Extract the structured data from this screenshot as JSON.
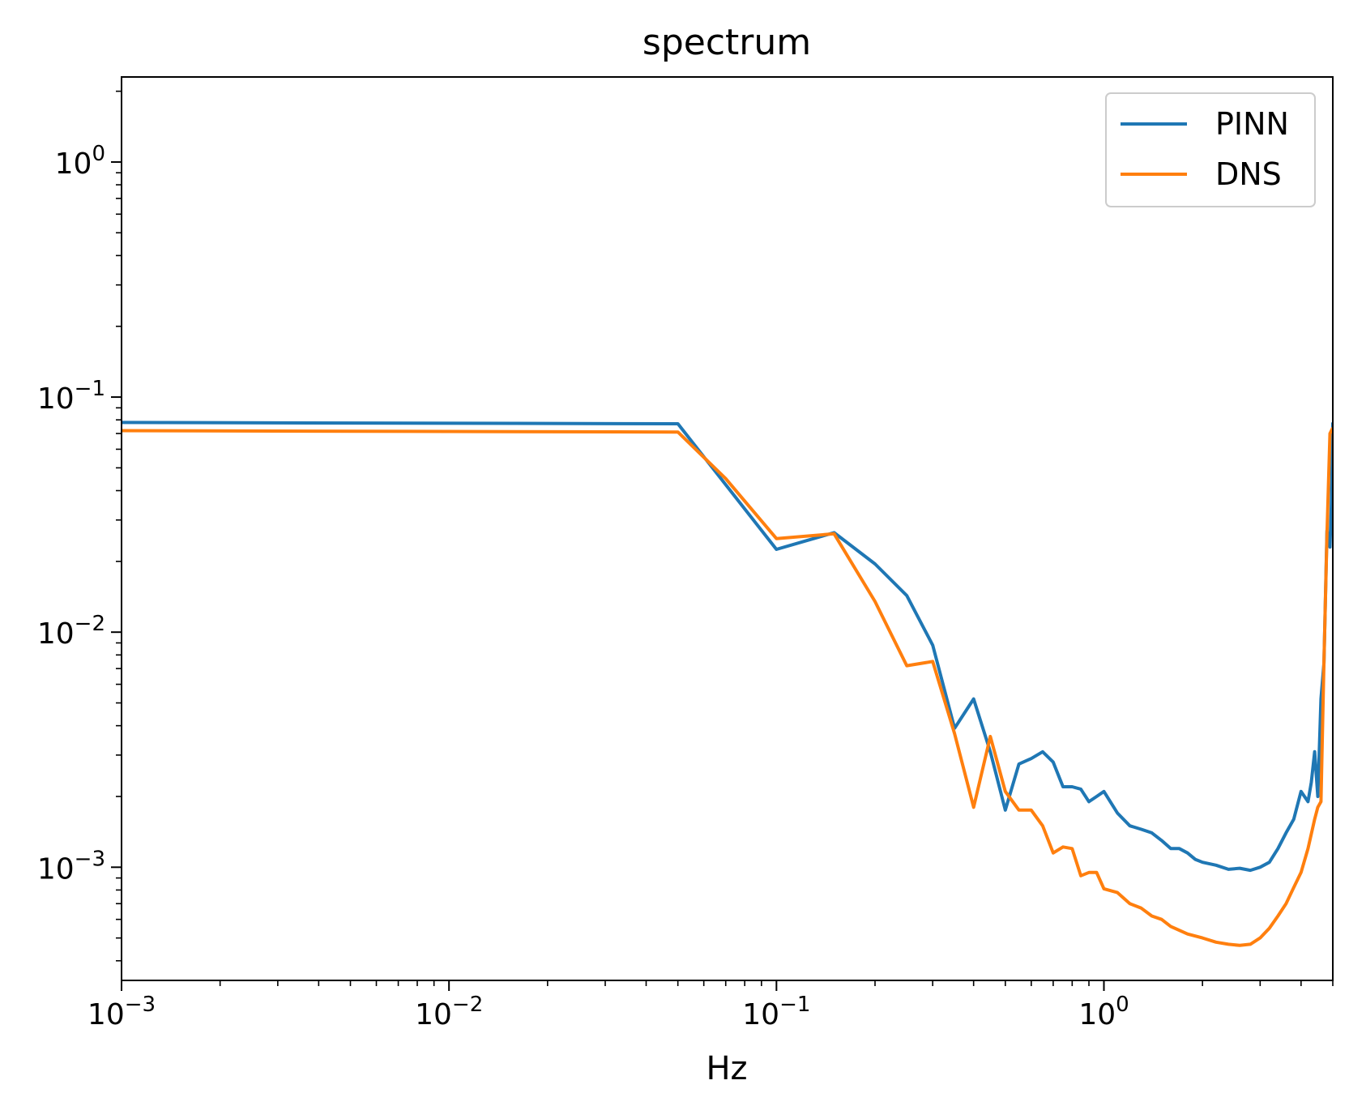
{
  "chart_data": {
    "type": "line",
    "title": "spectrum",
    "xlabel": "Hz",
    "ylabel": "",
    "x_scale": "log",
    "y_scale": "log",
    "xlim": [
      0.001,
      5.0
    ],
    "ylim": [
      0.00033,
      2.3
    ],
    "x_ticks": [
      {
        "value": 0.001,
        "base": "10",
        "exp": "−3"
      },
      {
        "value": 0.01,
        "base": "10",
        "exp": "−2"
      },
      {
        "value": 0.1,
        "base": "10",
        "exp": "−1"
      },
      {
        "value": 1,
        "base": "10",
        "exp": "0"
      }
    ],
    "y_ticks": [
      {
        "value": 0.001,
        "base": "10",
        "exp": "−3"
      },
      {
        "value": 0.01,
        "base": "10",
        "exp": "−2"
      },
      {
        "value": 0.1,
        "base": "10",
        "exp": "−1"
      },
      {
        "value": 1,
        "base": "10",
        "exp": "0"
      }
    ],
    "grid": false,
    "legend_position": "top-right",
    "series": [
      {
        "name": "PINN",
        "color": "#1f77b4",
        "x": [
          0.001,
          0.05,
          0.1,
          0.15,
          0.2,
          0.25,
          0.3,
          0.35,
          0.4,
          0.45,
          0.5,
          0.55,
          0.6,
          0.65,
          0.7,
          0.75,
          0.8,
          0.85,
          0.9,
          0.95,
          1.0,
          1.1,
          1.2,
          1.3,
          1.4,
          1.5,
          1.6,
          1.7,
          1.8,
          1.9,
          2.0,
          2.2,
          2.4,
          2.6,
          2.8,
          3.0,
          3.2,
          3.4,
          3.6,
          3.8,
          4.0,
          4.2,
          4.3,
          4.4,
          4.5,
          4.6,
          4.7,
          4.8,
          4.9,
          4.95,
          5.0
        ],
        "y": [
          0.078,
          0.077,
          0.0225,
          0.0265,
          0.0195,
          0.0143,
          0.0088,
          0.0039,
          0.0052,
          0.0031,
          0.00175,
          0.00275,
          0.0029,
          0.0031,
          0.0028,
          0.0022,
          0.0022,
          0.00215,
          0.0019,
          0.002,
          0.0021,
          0.0017,
          0.0015,
          0.00145,
          0.0014,
          0.0013,
          0.0012,
          0.0012,
          0.00115,
          0.00108,
          0.00105,
          0.00102,
          0.00098,
          0.00099,
          0.00097,
          0.001,
          0.00105,
          0.0012,
          0.0014,
          0.0016,
          0.0021,
          0.0019,
          0.0023,
          0.0031,
          0.002,
          0.0052,
          0.0074,
          0.027,
          0.023,
          0.035,
          0.078
        ]
      },
      {
        "name": "DNS",
        "color": "#ff7f0e",
        "x": [
          0.001,
          0.05,
          0.07,
          0.1,
          0.15,
          0.2,
          0.25,
          0.3,
          0.35,
          0.4,
          0.45,
          0.5,
          0.55,
          0.6,
          0.65,
          0.7,
          0.75,
          0.8,
          0.85,
          0.9,
          0.95,
          1.0,
          1.1,
          1.2,
          1.3,
          1.4,
          1.5,
          1.6,
          1.8,
          2.0,
          2.2,
          2.4,
          2.6,
          2.8,
          3.0,
          3.2,
          3.4,
          3.6,
          3.8,
          4.0,
          4.2,
          4.4,
          4.5,
          4.6,
          4.7,
          4.8,
          4.9,
          5.0
        ],
        "y": [
          0.072,
          0.071,
          0.045,
          0.025,
          0.0262,
          0.0135,
          0.0072,
          0.0075,
          0.0037,
          0.0018,
          0.0036,
          0.0021,
          0.00175,
          0.00175,
          0.0015,
          0.00115,
          0.00122,
          0.0012,
          0.00092,
          0.00095,
          0.00095,
          0.00081,
          0.00078,
          0.0007,
          0.00067,
          0.00062,
          0.0006,
          0.00056,
          0.00052,
          0.0005,
          0.00048,
          0.00047,
          0.000465,
          0.00047,
          0.0005,
          0.00055,
          0.00062,
          0.0007,
          0.00082,
          0.00095,
          0.0012,
          0.0016,
          0.0018,
          0.0019,
          0.0075,
          0.026,
          0.07,
          0.074
        ]
      }
    ]
  }
}
